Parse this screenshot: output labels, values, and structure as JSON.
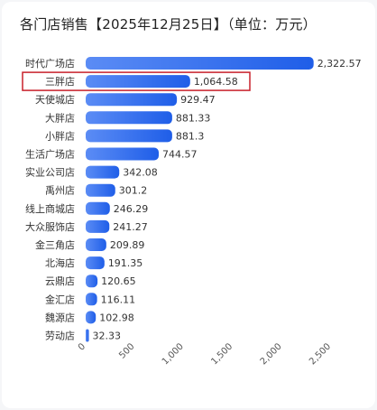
{
  "title": "各门店销售【2025年12月25日】（单位：万元）",
  "colors": {
    "bar_start": "#5b8cf5",
    "bar_end": "#1f5ee8",
    "highlight": "#c8202a"
  },
  "chart_data": {
    "type": "bar",
    "orientation": "horizontal",
    "categories": [
      "时代广场店",
      "三胖店",
      "天使城店",
      "大胖店",
      "小胖店",
      "生活广场店",
      "实业公司店",
      "禹州店",
      "线上商城店",
      "大众服饰店",
      "金三角店",
      "北海店",
      "云鼎店",
      "金汇店",
      "魏源店",
      "劳动店"
    ],
    "values": [
      2322.57,
      1064.58,
      929.47,
      881.33,
      881.3,
      744.57,
      342.08,
      301.2,
      246.29,
      241.27,
      209.89,
      191.35,
      120.65,
      116.11,
      102.98,
      32.33
    ],
    "value_labels": [
      "2,322.57",
      "1,064.58",
      "929.47",
      "881.33",
      "881.3",
      "744.57",
      "342.08",
      "301.2",
      "246.29",
      "241.27",
      "209.89",
      "191.35",
      "120.65",
      "116.11",
      "102.98",
      "32.33"
    ],
    "xlim": [
      0,
      2500
    ],
    "ticks": [
      0,
      500,
      1000,
      1500,
      2000,
      2500
    ],
    "tick_labels": [
      "0",
      "500",
      "1,000",
      "1,500",
      "2,000",
      "2,500"
    ],
    "grid": false,
    "highlighted_category": "三胖店"
  }
}
